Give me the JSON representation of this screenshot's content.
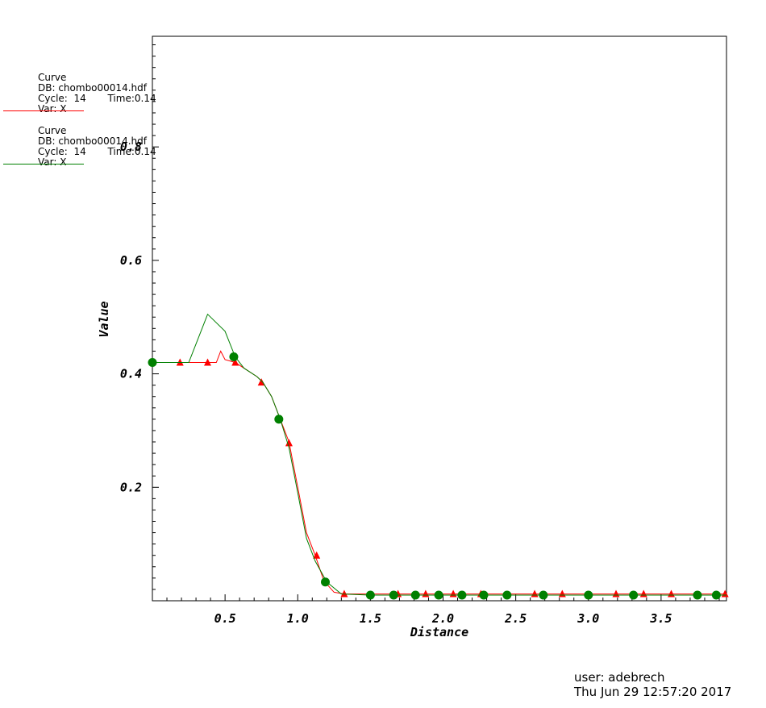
{
  "legend": [
    {
      "title": "Curve",
      "db": "DB: chombo00014.hdf",
      "cycle": "Cycle:  14",
      "time": "Time:0.14",
      "var": "Var: X",
      "color": "#ff0000"
    },
    {
      "title": "Curve",
      "db": "DB: chombo00014.hdf",
      "cycle": "Cycle:  14",
      "time": "Time:0.14",
      "var": "Var: X",
      "color": "#008000"
    }
  ],
  "footer": {
    "user": "user: adebrech",
    "date": "Thu Jun 29 12:57:20 2017"
  },
  "chart_data": {
    "type": "line",
    "xlabel": "Distance",
    "ylabel": "Value",
    "xlim": [
      0.0,
      3.95
    ],
    "ylim": [
      0.0,
      0.995
    ],
    "xticks": [
      0.5,
      1.0,
      1.5,
      2.0,
      2.5,
      3.0,
      3.5
    ],
    "xtick_labels": [
      "0.5",
      "1.0",
      "1.5",
      "2.0",
      "2.5",
      "3.0",
      "3.5"
    ],
    "yticks": [
      0.2,
      0.4,
      0.6,
      0.8
    ],
    "ytick_labels": [
      "0.2",
      "0.4",
      "0.6",
      "0.8"
    ],
    "series": [
      {
        "color": "#ff0000",
        "marker": "triangle",
        "x": [
          0.0,
          0.19,
          0.25,
          0.38,
          0.44,
          0.47,
          0.5,
          0.57,
          0.63,
          0.72,
          0.76,
          0.82,
          0.88,
          0.94,
          1.0,
          1.06,
          1.12,
          1.18,
          1.25,
          1.32,
          1.5,
          1.7,
          1.9,
          2.1,
          2.3,
          2.5,
          2.7,
          2.9,
          3.1,
          3.3,
          3.5,
          3.7,
          3.95
        ],
        "y": [
          0.42,
          0.42,
          0.42,
          0.42,
          0.42,
          0.44,
          0.425,
          0.42,
          0.41,
          0.395,
          0.385,
          0.36,
          0.32,
          0.28,
          0.2,
          0.12,
          0.08,
          0.035,
          0.015,
          0.012,
          0.012,
          0.012,
          0.012,
          0.012,
          0.012,
          0.012,
          0.012,
          0.012,
          0.012,
          0.012,
          0.012,
          0.012,
          0.012
        ],
        "markers_x": [
          0.19,
          0.38,
          0.57,
          0.75,
          0.94,
          1.13,
          1.32,
          1.69,
          1.88,
          2.07,
          2.26,
          2.63,
          2.82,
          3.19,
          3.38,
          3.57,
          3.94
        ],
        "markers_y": [
          0.42,
          0.42,
          0.42,
          0.385,
          0.278,
          0.08,
          0.012,
          0.012,
          0.012,
          0.012,
          0.012,
          0.012,
          0.012,
          0.012,
          0.012,
          0.012,
          0.012
        ]
      },
      {
        "color": "#008000",
        "marker": "circle",
        "x": [
          0.0,
          0.25,
          0.38,
          0.5,
          0.57,
          0.63,
          0.72,
          0.76,
          0.82,
          0.88,
          0.94,
          1.0,
          1.06,
          1.12,
          1.2,
          1.3,
          1.5,
          1.7,
          1.9,
          2.1,
          2.3,
          2.5,
          2.7,
          2.9,
          3.1,
          3.3,
          3.5,
          3.7,
          3.95
        ],
        "y": [
          0.42,
          0.42,
          0.505,
          0.475,
          0.43,
          0.41,
          0.395,
          0.385,
          0.36,
          0.32,
          0.27,
          0.19,
          0.11,
          0.07,
          0.033,
          0.012,
          0.01,
          0.01,
          0.01,
          0.01,
          0.01,
          0.01,
          0.01,
          0.01,
          0.01,
          0.01,
          0.01,
          0.01,
          0.01
        ],
        "markers_x": [
          0.0,
          0.56,
          0.87,
          1.19,
          1.5,
          1.66,
          1.81,
          1.97,
          2.13,
          2.28,
          2.44,
          2.69,
          3.0,
          3.31,
          3.75,
          3.88
        ],
        "markers_y": [
          0.42,
          0.43,
          0.32,
          0.033,
          0.01,
          0.01,
          0.01,
          0.01,
          0.01,
          0.01,
          0.01,
          0.01,
          0.01,
          0.01,
          0.01,
          0.01
        ]
      }
    ]
  }
}
